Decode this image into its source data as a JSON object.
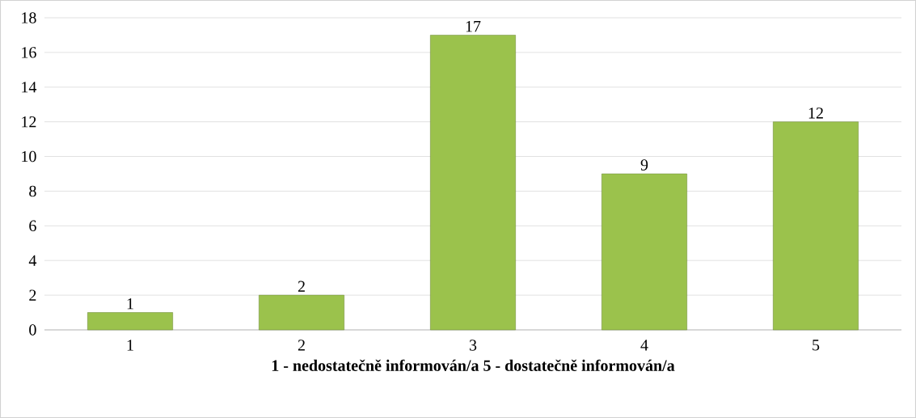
{
  "chart_data": {
    "type": "bar",
    "xlabel": "1 - nedostatečně informován/a      5 - dostatečně informován/a",
    "categories": [
      "1",
      "2",
      "3",
      "4",
      "5"
    ],
    "values": [
      1,
      2,
      17,
      9,
      12
    ],
    "color": "#9bc24c",
    "ylim": [
      0,
      18
    ],
    "yticks": [
      0,
      2,
      4,
      6,
      8,
      10,
      12,
      14,
      16,
      18
    ],
    "grid": "y",
    "data_labels": true
  }
}
